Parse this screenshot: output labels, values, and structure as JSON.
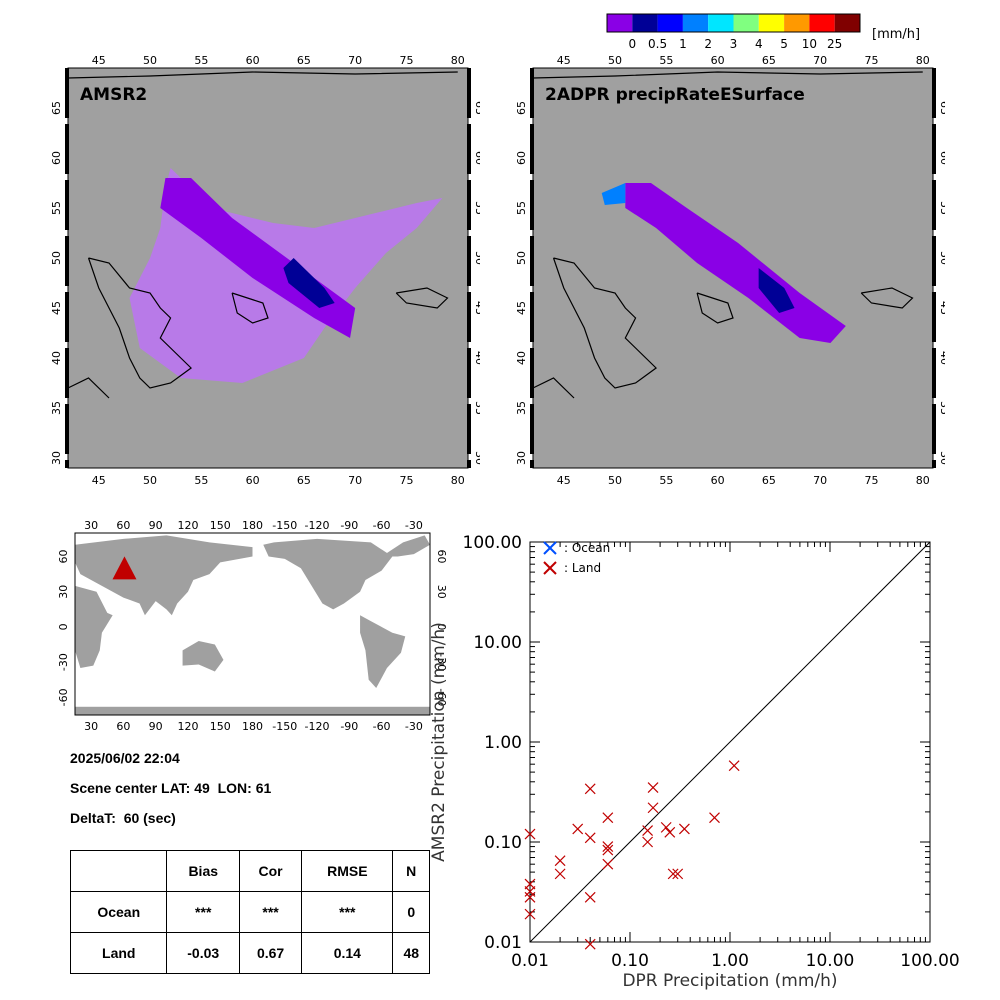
{
  "colorbar": {
    "unit": "[mm/h]",
    "ticks": [
      "0",
      "0.5",
      "1",
      "2",
      "3",
      "4",
      "5",
      "10",
      "25"
    ],
    "colors": [
      "#8a00e6",
      "#000096",
      "#0000ff",
      "#0080ff",
      "#00e6ff",
      "#80ff80",
      "#ffff00",
      "#ff9900",
      "#ff0000",
      "#800000"
    ]
  },
  "map_left": {
    "title": "AMSR2",
    "lon_ticks": [
      "45",
      "50",
      "55",
      "60",
      "65",
      "70",
      "75",
      "80"
    ],
    "lat_ticks": [
      "30",
      "35",
      "40",
      "45",
      "50",
      "55",
      "60",
      "65"
    ]
  },
  "map_right": {
    "title": "2ADPR precipRateESurface",
    "lon_ticks": [
      "45",
      "50",
      "55",
      "60",
      "65",
      "70",
      "75",
      "80"
    ],
    "lat_ticks": [
      "30",
      "35",
      "40",
      "45",
      "50",
      "55",
      "60",
      "65"
    ]
  },
  "globe": {
    "lon_ticks": [
      "30",
      "60",
      "90",
      "120",
      "150",
      "180",
      "-150",
      "-120",
      "-90",
      "-60",
      "-30"
    ],
    "lat_ticks": [
      "-60",
      "-30",
      "0",
      "30",
      "60"
    ]
  },
  "info": {
    "datetime": "2025/06/02 22:04",
    "center_label": "Scene center LAT:",
    "center_lat": "49",
    "lon_label": "LON:",
    "center_lon": "61",
    "delta_label": "DeltaT:",
    "delta_value": "60 (sec)"
  },
  "stats_table": {
    "headers": [
      "",
      "Bias",
      "Cor",
      "RMSE",
      "N"
    ],
    "rows": [
      [
        "Ocean",
        "***",
        "***",
        "***",
        "0"
      ],
      [
        "Land",
        "-0.03",
        "0.67",
        "0.14",
        "48"
      ]
    ]
  },
  "chart_data": {
    "type": "scatter",
    "xlabel": "DPR Precipitation (mm/h)",
    "ylabel": "AMSR2 Precipitation (mm/h)",
    "xscale": "log",
    "yscale": "log",
    "xlim": [
      0.01,
      100
    ],
    "ylim": [
      0.01,
      100
    ],
    "x_ticks": [
      "0.01",
      "0.10",
      "1.00",
      "10.00",
      "100.00"
    ],
    "y_ticks": [
      "0.01",
      "0.10",
      "1.00",
      "10.00",
      "100.00"
    ],
    "legend": [
      {
        "label": ": Ocean",
        "color": "#0050ff"
      },
      {
        "label": ": Land",
        "color": "#c00000"
      }
    ],
    "legend_position": "top-left",
    "reference_line": "1:1",
    "series": [
      {
        "name": "Ocean",
        "color": "#0050ff",
        "points": []
      },
      {
        "name": "Land",
        "color": "#c00000",
        "points": [
          [
            0.01,
            0.12
          ],
          [
            0.01,
            0.038
          ],
          [
            0.01,
            0.032
          ],
          [
            0.01,
            0.028
          ],
          [
            0.01,
            0.019
          ],
          [
            0.02,
            0.065
          ],
          [
            0.02,
            0.048
          ],
          [
            0.03,
            0.135
          ],
          [
            0.04,
            0.34
          ],
          [
            0.04,
            0.11
          ],
          [
            0.04,
            0.028
          ],
          [
            0.04,
            0.0095
          ],
          [
            0.06,
            0.175
          ],
          [
            0.06,
            0.09
          ],
          [
            0.06,
            0.083
          ],
          [
            0.06,
            0.06
          ],
          [
            0.15,
            0.13
          ],
          [
            0.15,
            0.1
          ],
          [
            0.17,
            0.35
          ],
          [
            0.17,
            0.22
          ],
          [
            0.23,
            0.14
          ],
          [
            0.25,
            0.125
          ],
          [
            0.27,
            0.048
          ],
          [
            0.3,
            0.048
          ],
          [
            0.35,
            0.135
          ],
          [
            0.7,
            0.175
          ],
          [
            1.1,
            0.58
          ]
        ]
      }
    ]
  }
}
